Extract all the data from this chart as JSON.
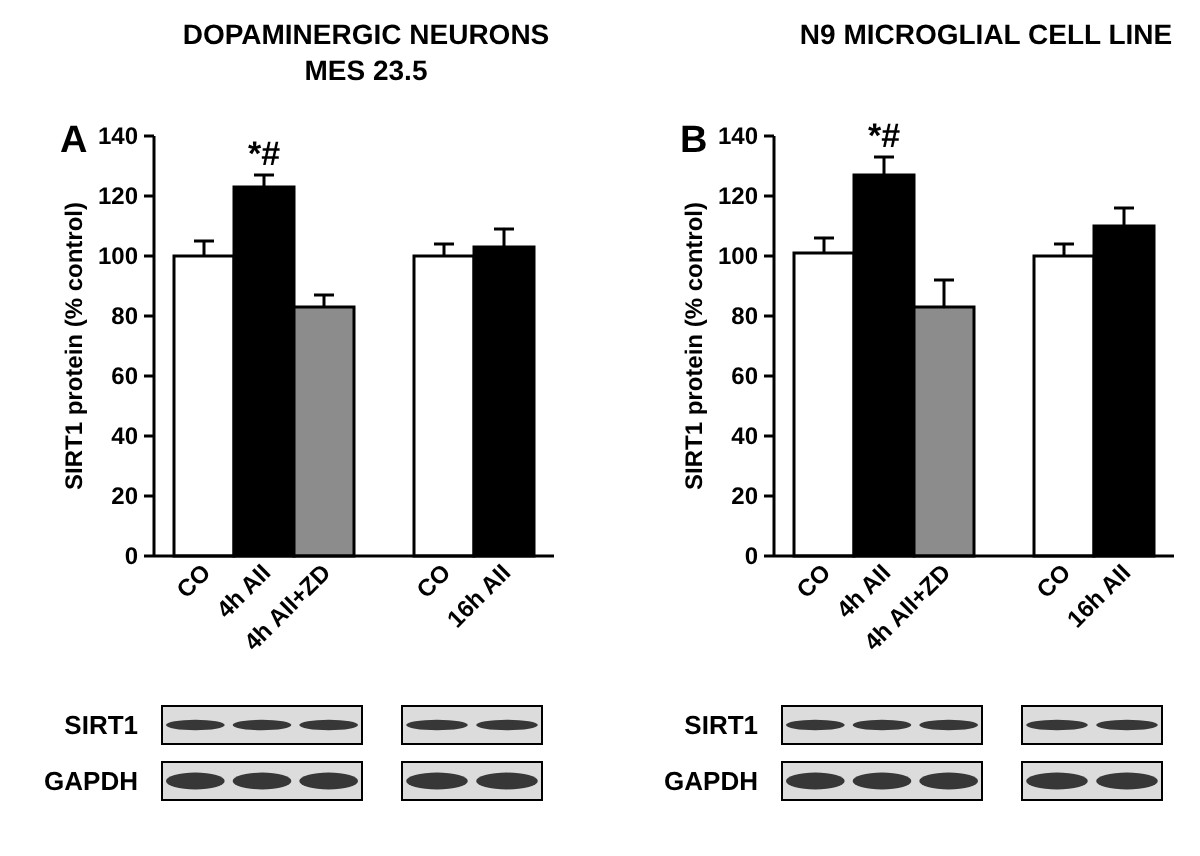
{
  "chart_data": [
    {
      "type": "bar",
      "title": "DOPAMINERGIC NEURONS",
      "subtitle": "MES 23.5",
      "ylabel": "SIRT1 protein (% control)",
      "categories": [
        "CO",
        "4h AII",
        "4h AII+ZD",
        null,
        "CO",
        "16h AII"
      ],
      "values": [
        100,
        123,
        83,
        null,
        100,
        103
      ],
      "errors": [
        5,
        4,
        4,
        null,
        4,
        6
      ],
      "colors": [
        "#ffffff",
        "#000000",
        "#8c8c8c",
        null,
        "#ffffff",
        "#000000"
      ],
      "ylim": [
        0,
        140
      ],
      "yticks": [
        0,
        20,
        40,
        60,
        80,
        100,
        120,
        140
      ],
      "annotations": [
        "A",
        "SIRT1",
        "GAPDH",
        {
          "text": "*#",
          "x": "4h AII",
          "y": 127
        }
      ]
    },
    {
      "type": "bar",
      "title": "N9 MICROGLIAL CELL LINE",
      "ylabel": "SIRT1 protein (% control)",
      "categories": [
        "CO",
        "4h AII",
        "4h AII+ZD",
        null,
        "CO",
        "16h AII"
      ],
      "values": [
        101,
        127,
        83,
        null,
        100,
        110
      ],
      "errors": [
        5,
        6,
        9,
        null,
        4,
        6
      ],
      "colors": [
        "#ffffff",
        "#000000",
        "#8c8c8c",
        null,
        "#ffffff",
        "#000000"
      ],
      "ylim": [
        0,
        140
      ],
      "yticks": [
        0,
        20,
        40,
        60,
        80,
        100,
        120,
        140
      ],
      "annotations": [
        "B",
        "SIRT1",
        "GAPDH",
        {
          "text": "*#",
          "x": "4h AII",
          "y": 133
        }
      ]
    }
  ]
}
